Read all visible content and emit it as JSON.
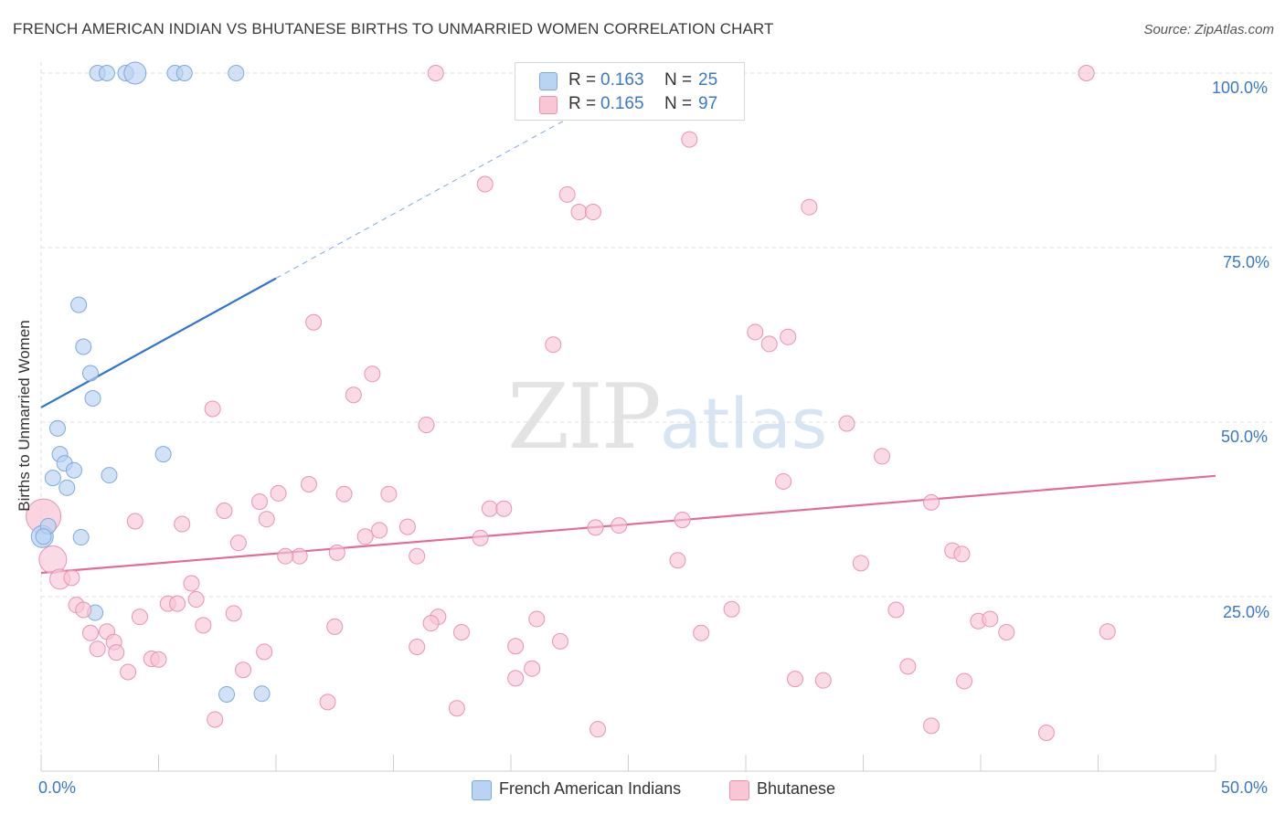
{
  "title": "FRENCH AMERICAN INDIAN VS BHUTANESE BIRTHS TO UNMARRIED WOMEN CORRELATION CHART",
  "source": "Source: ZipAtlas.com",
  "watermark": {
    "zip": "ZIP",
    "atlas": "atlas"
  },
  "colors": {
    "blue_fill": "#b9d3f3",
    "blue_stroke": "#7ea9df",
    "blue_line": "#2f74d0",
    "pink_fill": "#f8c6d5",
    "pink_stroke": "#eb93ae",
    "pink_line": "#e56b95",
    "axis_text": "#3a78c9",
    "grid": "#dddddd"
  },
  "legend": {
    "rows": [
      {
        "r_label": "R =",
        "r_value": "0.163",
        "n_label": "N =",
        "n_value": "25"
      },
      {
        "r_label": "R =",
        "r_value": "0.165",
        "n_label": "N =",
        "n_value": "97"
      }
    ]
  },
  "bottom_legend": [
    "French American Indians",
    "Bhutanese"
  ],
  "chart_data": {
    "type": "scatter",
    "title": "FRENCH AMERICAN INDIAN VS BHUTANESE BIRTHS TO UNMARRIED WOMEN CORRELATION CHART",
    "xlabel": "",
    "ylabel": "Births to Unmarried Women",
    "xlim": [
      0,
      50
    ],
    "ylim": [
      0,
      100
    ],
    "x_tick_labels": [
      "0.0%",
      "50.0%"
    ],
    "y_tick_labels": [
      "25.0%",
      "50.0%",
      "75.0%",
      "100.0%"
    ],
    "y_tick_values": [
      25,
      50,
      75,
      100
    ],
    "series": [
      {
        "name": "French American Indians",
        "r": 0.163,
        "n": 25,
        "trend": {
          "x": [
            0,
            10
          ],
          "y": [
            52.1,
            70.6
          ]
        },
        "trend_dashed": {
          "x": [
            10,
            22.7
          ],
          "y": [
            70.6,
            94.0
          ]
        },
        "points": [
          [
            2.4,
            100
          ],
          [
            2.8,
            100
          ],
          [
            3.6,
            100
          ],
          [
            4.0,
            100
          ],
          [
            5.7,
            100
          ],
          [
            6.1,
            100
          ],
          [
            8.3,
            100
          ],
          [
            1.6,
            66.8
          ],
          [
            1.8,
            60.8
          ],
          [
            2.1,
            57.0
          ],
          [
            2.2,
            53.4
          ],
          [
            0.7,
            49.1
          ],
          [
            0.8,
            45.4
          ],
          [
            5.2,
            45.4
          ],
          [
            1.0,
            44.1
          ],
          [
            1.4,
            43.1
          ],
          [
            0.5,
            42.0
          ],
          [
            2.9,
            42.4
          ],
          [
            1.1,
            40.6
          ],
          [
            0.3,
            35.1
          ],
          [
            1.7,
            33.5
          ],
          [
            0.1,
            33.6
          ],
          [
            2.3,
            22.7
          ],
          [
            7.9,
            11.0
          ],
          [
            9.4,
            11.1
          ]
        ],
        "sizes": {
          "3": 12
        }
      },
      {
        "name": "Bhutanese",
        "r": 0.165,
        "n": 97,
        "trend": {
          "x": [
            0,
            50
          ],
          "y": [
            28.4,
            42.3
          ]
        },
        "points": [
          [
            16.8,
            100
          ],
          [
            44.5,
            100
          ],
          [
            27.6,
            90.5
          ],
          [
            18.9,
            84.1
          ],
          [
            22.4,
            82.6
          ],
          [
            22.9,
            80.1
          ],
          [
            23.5,
            80.1
          ],
          [
            32.7,
            80.8
          ],
          [
            11.6,
            64.3
          ],
          [
            30.4,
            62.9
          ],
          [
            31.0,
            61.2
          ],
          [
            31.8,
            62.2
          ],
          [
            21.8,
            61.1
          ],
          [
            14.1,
            56.9
          ],
          [
            13.3,
            53.9
          ],
          [
            7.3,
            51.9
          ],
          [
            16.4,
            49.6
          ],
          [
            34.3,
            49.8
          ],
          [
            35.8,
            45.1
          ],
          [
            31.6,
            41.5
          ],
          [
            11.4,
            41.1
          ],
          [
            12.9,
            39.7
          ],
          [
            14.8,
            39.7
          ],
          [
            10.1,
            39.8
          ],
          [
            9.3,
            38.6
          ],
          [
            37.9,
            38.5
          ],
          [
            19.1,
            37.6
          ],
          [
            19.7,
            37.6
          ],
          [
            7.8,
            37.3
          ],
          [
            4.0,
            35.8
          ],
          [
            6.0,
            35.4
          ],
          [
            9.6,
            36.1
          ],
          [
            15.6,
            35.0
          ],
          [
            27.3,
            36.0
          ],
          [
            23.6,
            34.9
          ],
          [
            24.6,
            35.2
          ],
          [
            14.4,
            34.5
          ],
          [
            13.8,
            33.6
          ],
          [
            18.7,
            33.4
          ],
          [
            8.4,
            32.7
          ],
          [
            12.6,
            31.3
          ],
          [
            16.0,
            30.8
          ],
          [
            11.0,
            30.8
          ],
          [
            10.4,
            30.8
          ],
          [
            27.1,
            30.2
          ],
          [
            34.9,
            29.8
          ],
          [
            38.8,
            31.6
          ],
          [
            39.2,
            31.1
          ],
          [
            0.5,
            30.3
          ],
          [
            0.8,
            27.5
          ],
          [
            1.3,
            27.7
          ],
          [
            6.4,
            26.9
          ],
          [
            1.5,
            23.8
          ],
          [
            1.8,
            23.1
          ],
          [
            5.4,
            24.0
          ],
          [
            5.8,
            24.0
          ],
          [
            6.6,
            24.6
          ],
          [
            4.2,
            22.1
          ],
          [
            8.2,
            22.6
          ],
          [
            16.9,
            22.1
          ],
          [
            21.1,
            21.8
          ],
          [
            29.4,
            23.2
          ],
          [
            36.4,
            23.1
          ],
          [
            39.9,
            21.5
          ],
          [
            40.4,
            21.8
          ],
          [
            6.9,
            20.9
          ],
          [
            12.5,
            20.7
          ],
          [
            16.6,
            21.2
          ],
          [
            17.9,
            19.9
          ],
          [
            28.1,
            19.8
          ],
          [
            2.1,
            19.8
          ],
          [
            2.8,
            20.0
          ],
          [
            41.1,
            19.9
          ],
          [
            45.4,
            20.0
          ],
          [
            3.1,
            18.5
          ],
          [
            3.2,
            17.0
          ],
          [
            2.4,
            17.5
          ],
          [
            22.1,
            18.6
          ],
          [
            16.0,
            17.8
          ],
          [
            20.2,
            17.9
          ],
          [
            9.5,
            17.1
          ],
          [
            4.7,
            16.1
          ],
          [
            5.0,
            16.0
          ],
          [
            8.6,
            14.5
          ],
          [
            36.9,
            15.0
          ],
          [
            3.7,
            14.2
          ],
          [
            20.9,
            14.7
          ],
          [
            20.2,
            13.3
          ],
          [
            32.1,
            13.2
          ],
          [
            33.3,
            13.0
          ],
          [
            39.3,
            12.9
          ],
          [
            12.2,
            9.9
          ],
          [
            17.7,
            9.0
          ],
          [
            7.4,
            7.4
          ],
          [
            37.9,
            6.5
          ],
          [
            23.7,
            6.0
          ],
          [
            42.8,
            5.5
          ]
        ],
        "sizes": {
          "48": 15,
          "49": 11
        }
      }
    ],
    "extra_large_points": [
      {
        "series": "Bhutanese",
        "x": 0.1,
        "y": 36.5,
        "r": 19
      },
      {
        "series": "French American Indians",
        "x": 0.05,
        "y": 33.6,
        "r": 12
      }
    ]
  }
}
